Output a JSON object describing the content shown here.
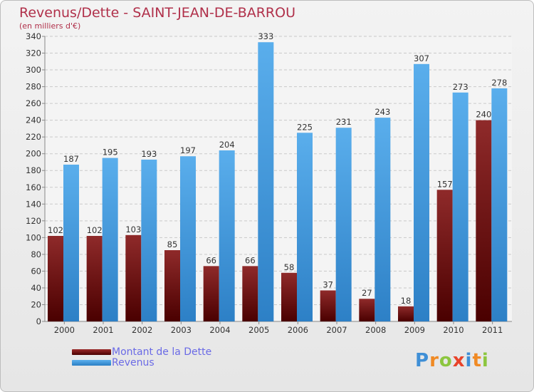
{
  "header": {
    "title": "Revenus/Dette - SAINT-JEAN-DE-BARROU",
    "subtitle": "(en milliers d'€)"
  },
  "legend": {
    "items": [
      {
        "label": "Montant de la Dette",
        "color": "#7a1a1a"
      },
      {
        "label": "Revenus",
        "color": "#3f97dd"
      }
    ]
  },
  "brand": {
    "text": "Proxiti",
    "letters": [
      {
        "ch": "P",
        "color": "#3f8fd6"
      },
      {
        "ch": "r",
        "color": "#f08a24"
      },
      {
        "ch": "o",
        "color": "#8cc63f"
      },
      {
        "ch": "x",
        "color": "#e8432a"
      },
      {
        "ch": "i",
        "color": "#3f8fd6"
      },
      {
        "ch": "t",
        "color": "#f08a24"
      },
      {
        "ch": "i",
        "color": "#8cc63f"
      }
    ]
  },
  "chart_data": {
    "type": "bar",
    "title": "Revenus/Dette - SAINT-JEAN-DE-BARROU",
    "subtitle": "(en milliers d'€)",
    "categories": [
      "2000",
      "2001",
      "2002",
      "2003",
      "2004",
      "2005",
      "2006",
      "2007",
      "2008",
      "2009",
      "2010",
      "2011"
    ],
    "series": [
      {
        "name": "Montant de la Dette",
        "color": "#7a1a1a",
        "values": [
          102,
          102,
          103,
          85,
          66,
          66,
          58,
          37,
          27,
          18,
          157,
          240
        ]
      },
      {
        "name": "Revenus",
        "color": "#3f97dd",
        "values": [
          187,
          195,
          193,
          197,
          204,
          333,
          225,
          231,
          243,
          307,
          273,
          278
        ]
      }
    ],
    "ylim": [
      0,
      340
    ],
    "yticks": [
      0,
      20,
      40,
      60,
      80,
      100,
      120,
      140,
      160,
      180,
      200,
      220,
      240,
      260,
      280,
      300,
      320,
      340
    ],
    "grid": true,
    "legend_position": "bottom-left"
  }
}
